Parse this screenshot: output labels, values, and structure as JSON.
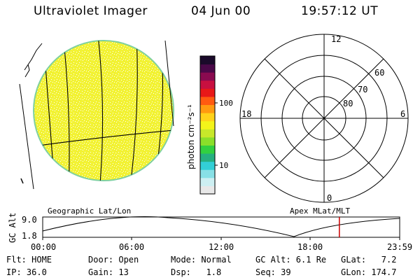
{
  "header": {
    "instrument": "Ultraviolet Imager",
    "date": "04 Jun 00",
    "time": "19:57:12 UT"
  },
  "colorbar": {
    "unit_label": "photon cm⁻²s⁻¹",
    "tick_100": "100",
    "tick_10": "10",
    "colors": [
      "#e8e8e8",
      "#cdeff2",
      "#88e0e6",
      "#33cfd6",
      "#26b080",
      "#32d040",
      "#8adf2a",
      "#c8e82a",
      "#f4f41a",
      "#ffd21a",
      "#ff9a10",
      "#ff5a10",
      "#e81818",
      "#c81040",
      "#8a0a50",
      "#4a0848",
      "#1a0a2a"
    ]
  },
  "polar": {
    "labels": [
      "12",
      "18",
      "6",
      "0",
      "60",
      "70",
      "80"
    ]
  },
  "timeline": {
    "left_title": "Geographic Lat/Lon",
    "right_title": "Apex MLat/MLT",
    "ylabel": "GC Alt",
    "y_top": "9.0",
    "y_bottom": "1.8",
    "x_ticks": [
      "00:00",
      "06:00",
      "12:00",
      "18:00",
      "23:59"
    ],
    "marker_fraction": 0.831,
    "marker_color": "#cc0000"
  },
  "status": {
    "row1": {
      "flt": "Flt: HOME",
      "door": "Door: Open",
      "mode": "Mode: Normal",
      "gcalt": "GC Alt: 6.1 Re",
      "glat": "GLat:   7.2"
    },
    "row2": {
      "ip": "IP: 36.0",
      "gain": "Gain: 13",
      "dsp": "Dsp:   1.8",
      "seq": "Seq: 39",
      "glon": "GLon: 174.7"
    }
  },
  "colors": {
    "earth_fill": "#f2f233",
    "earth_limb": "#7fd0a0",
    "line": "#000000"
  }
}
